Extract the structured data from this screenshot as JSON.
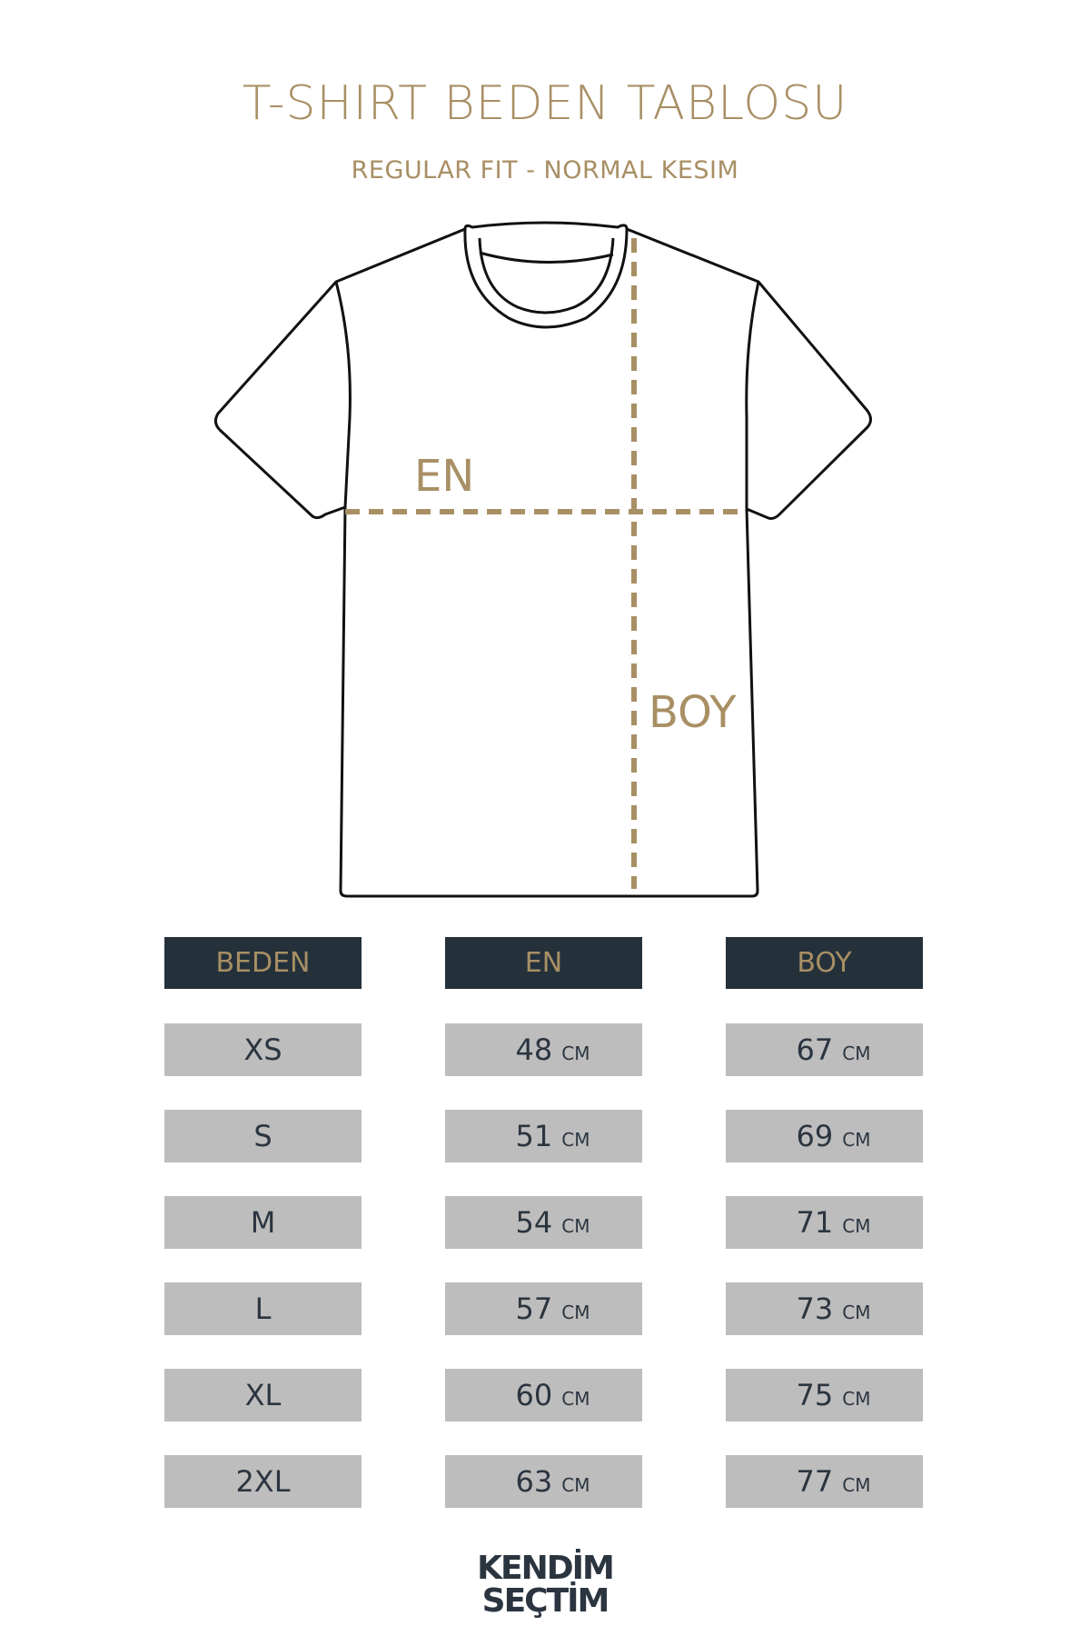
{
  "title": "T-SHIRT BEDEN TABLOSU",
  "subtitle": "REGULAR FIT - NORMAL KESIM",
  "diagram": {
    "width_label": "EN",
    "length_label": "BOY"
  },
  "colors": {
    "accent": "#a88f64",
    "header_bg": "#24313b",
    "cell_bg": "#bdbdbd",
    "text": "#2b3540"
  },
  "table": {
    "headers": [
      "BEDEN",
      "EN",
      "BOY"
    ],
    "unit": "CM",
    "rows": [
      {
        "size": "XS",
        "en": "48",
        "boy": "67"
      },
      {
        "size": "S",
        "en": "51",
        "boy": "69"
      },
      {
        "size": "M",
        "en": "54",
        "boy": "71"
      },
      {
        "size": "L",
        "en": "57",
        "boy": "73"
      },
      {
        "size": "XL",
        "en": "60",
        "boy": "75"
      },
      {
        "size": "2XL",
        "en": "63",
        "boy": "77"
      }
    ]
  },
  "logo": {
    "line1": "KENDİM",
    "line2": "SEÇTİM"
  }
}
